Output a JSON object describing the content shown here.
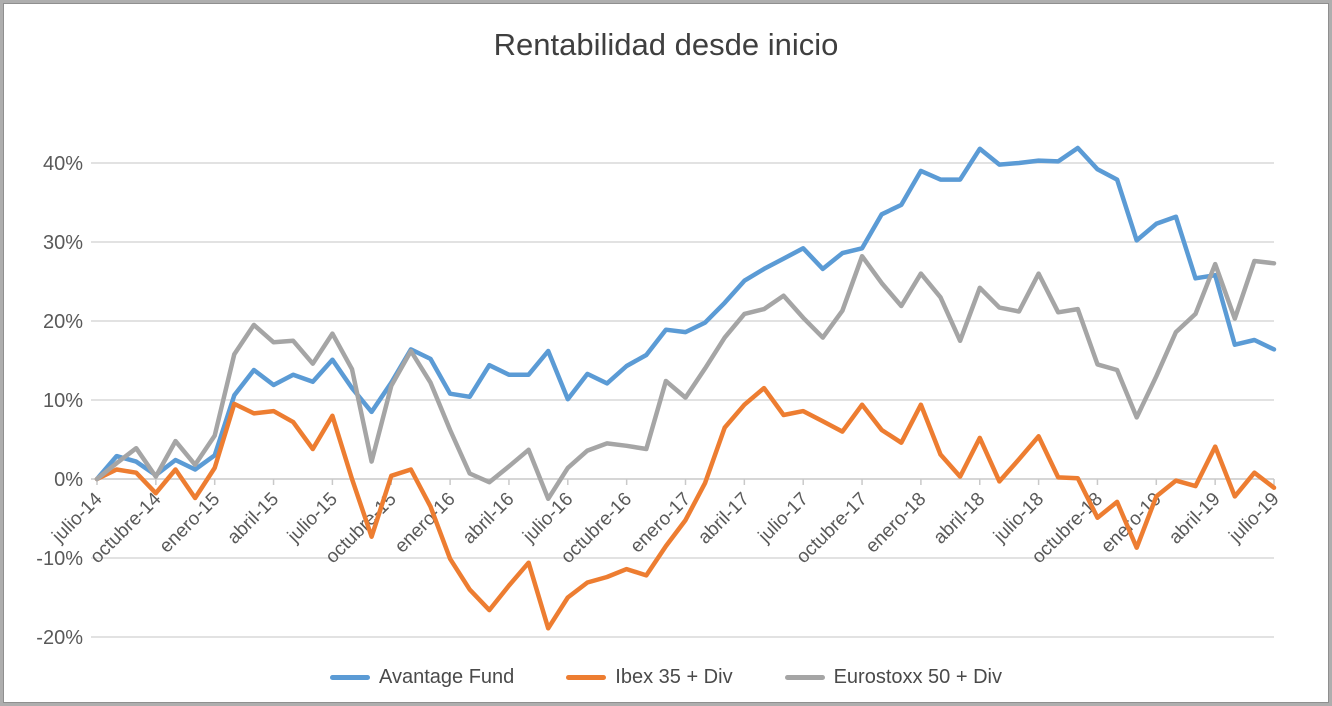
{
  "title": "Rentabilidad desde inicio",
  "chart_data": {
    "type": "line",
    "title": "Rentabilidad desde inicio",
    "grid": true,
    "legend_position": "bottom",
    "x_axis": {
      "unit": "month",
      "first_month": "julio-14",
      "last_month": "julio-19",
      "tick_every": 3,
      "tick_labels": [
        "julio-14",
        "octubre-14",
        "enero-15",
        "abril-15",
        "julio-15",
        "octubre-15",
        "enero-16",
        "abril-16",
        "julio-16",
        "octubre-16",
        "enero-17",
        "abril-17",
        "julio-17",
        "octubre-17",
        "enero-18",
        "abril-18",
        "julio-18",
        "octubre-18",
        "enero-19",
        "abril-19",
        "julio-19"
      ]
    },
    "y_axis": {
      "ticks": [
        {
          "label": "40%",
          "value": 40
        },
        {
          "label": "30%",
          "value": 30
        },
        {
          "label": "20%",
          "value": 20
        },
        {
          "label": "10%",
          "value": 10
        },
        {
          "label": "0%",
          "value": 0
        },
        {
          "label": "-10%",
          "value": -10
        },
        {
          "label": "-20%",
          "value": -20
        }
      ],
      "ylim": [
        -22,
        45
      ]
    },
    "series": [
      {
        "name": "Avantage Fund",
        "color": "#5B9BD5",
        "values": [
          0,
          2.9,
          2.2,
          0.5,
          2.4,
          1.2,
          3.0,
          10.6,
          13.8,
          11.9,
          13.2,
          12.3,
          15.1,
          11.5,
          8.5,
          12.2,
          16.4,
          15.2,
          10.8,
          10.4,
          14.4,
          13.2,
          13.2,
          16.2,
          10.1,
          13.3,
          12.1,
          14.3,
          15.7,
          18.9,
          18.6,
          19.8,
          22.3,
          25.1,
          26.6,
          27.9,
          29.2,
          26.6,
          28.6,
          29.2,
          33.5,
          34.7,
          39.0,
          37.9,
          37.9,
          41.8,
          39.8,
          40.0,
          40.3,
          40.2,
          41.9,
          39.2,
          37.9,
          30.2,
          32.3,
          33.2,
          25.4,
          25.8,
          17.0,
          17.6,
          16.4
        ]
      },
      {
        "name": "Ibex 35 + Div",
        "color": "#ED7D31",
        "values": [
          0,
          1.2,
          0.8,
          -1.8,
          1.2,
          -2.4,
          1.4,
          9.5,
          8.3,
          8.6,
          7.2,
          3.8,
          8.0,
          0.0,
          -7.3,
          0.4,
          1.2,
          -3.5,
          -10.1,
          -14.0,
          -16.6,
          -13.5,
          -10.6,
          -18.9,
          -15.0,
          -13.1,
          -12.4,
          -11.4,
          -12.2,
          -8.5,
          -5.2,
          -0.5,
          6.5,
          9.4,
          11.5,
          8.1,
          8.6,
          7.3,
          6.0,
          9.4,
          6.2,
          4.6,
          9.4,
          3.1,
          0.3,
          5.2,
          -0.3,
          2.5,
          5.4,
          0.2,
          0.1,
          -4.9,
          -2.9,
          -8.7,
          -2.2,
          -0.2,
          -0.9,
          4.1,
          -2.2,
          0.8,
          -1.1
        ]
      },
      {
        "name": "Eurostoxx 50 + Div",
        "color": "#A5A5A5",
        "values": [
          0,
          2.0,
          3.9,
          0.3,
          4.8,
          1.8,
          5.5,
          15.8,
          19.5,
          17.3,
          17.5,
          14.6,
          18.4,
          13.9,
          2.2,
          11.8,
          16.2,
          12.2,
          6.2,
          0.7,
          -0.4,
          1.6,
          3.7,
          -2.5,
          1.4,
          3.6,
          4.5,
          4.2,
          3.8,
          12.4,
          10.3,
          14.0,
          17.9,
          20.9,
          21.5,
          23.2,
          20.4,
          17.9,
          21.3,
          28.2,
          24.8,
          21.9,
          26.0,
          23.0,
          17.5,
          24.2,
          21.7,
          21.2,
          26.0,
          21.1,
          21.5,
          14.5,
          13.8,
          7.8,
          13.0,
          18.6,
          20.9,
          27.2,
          20.3,
          27.6,
          27.3
        ]
      }
    ],
    "style": {
      "gridline_color": "#d9d9d9",
      "axis_color": "#c9c9c9",
      "label_color": "#595959",
      "line_width": 4.5
    }
  }
}
